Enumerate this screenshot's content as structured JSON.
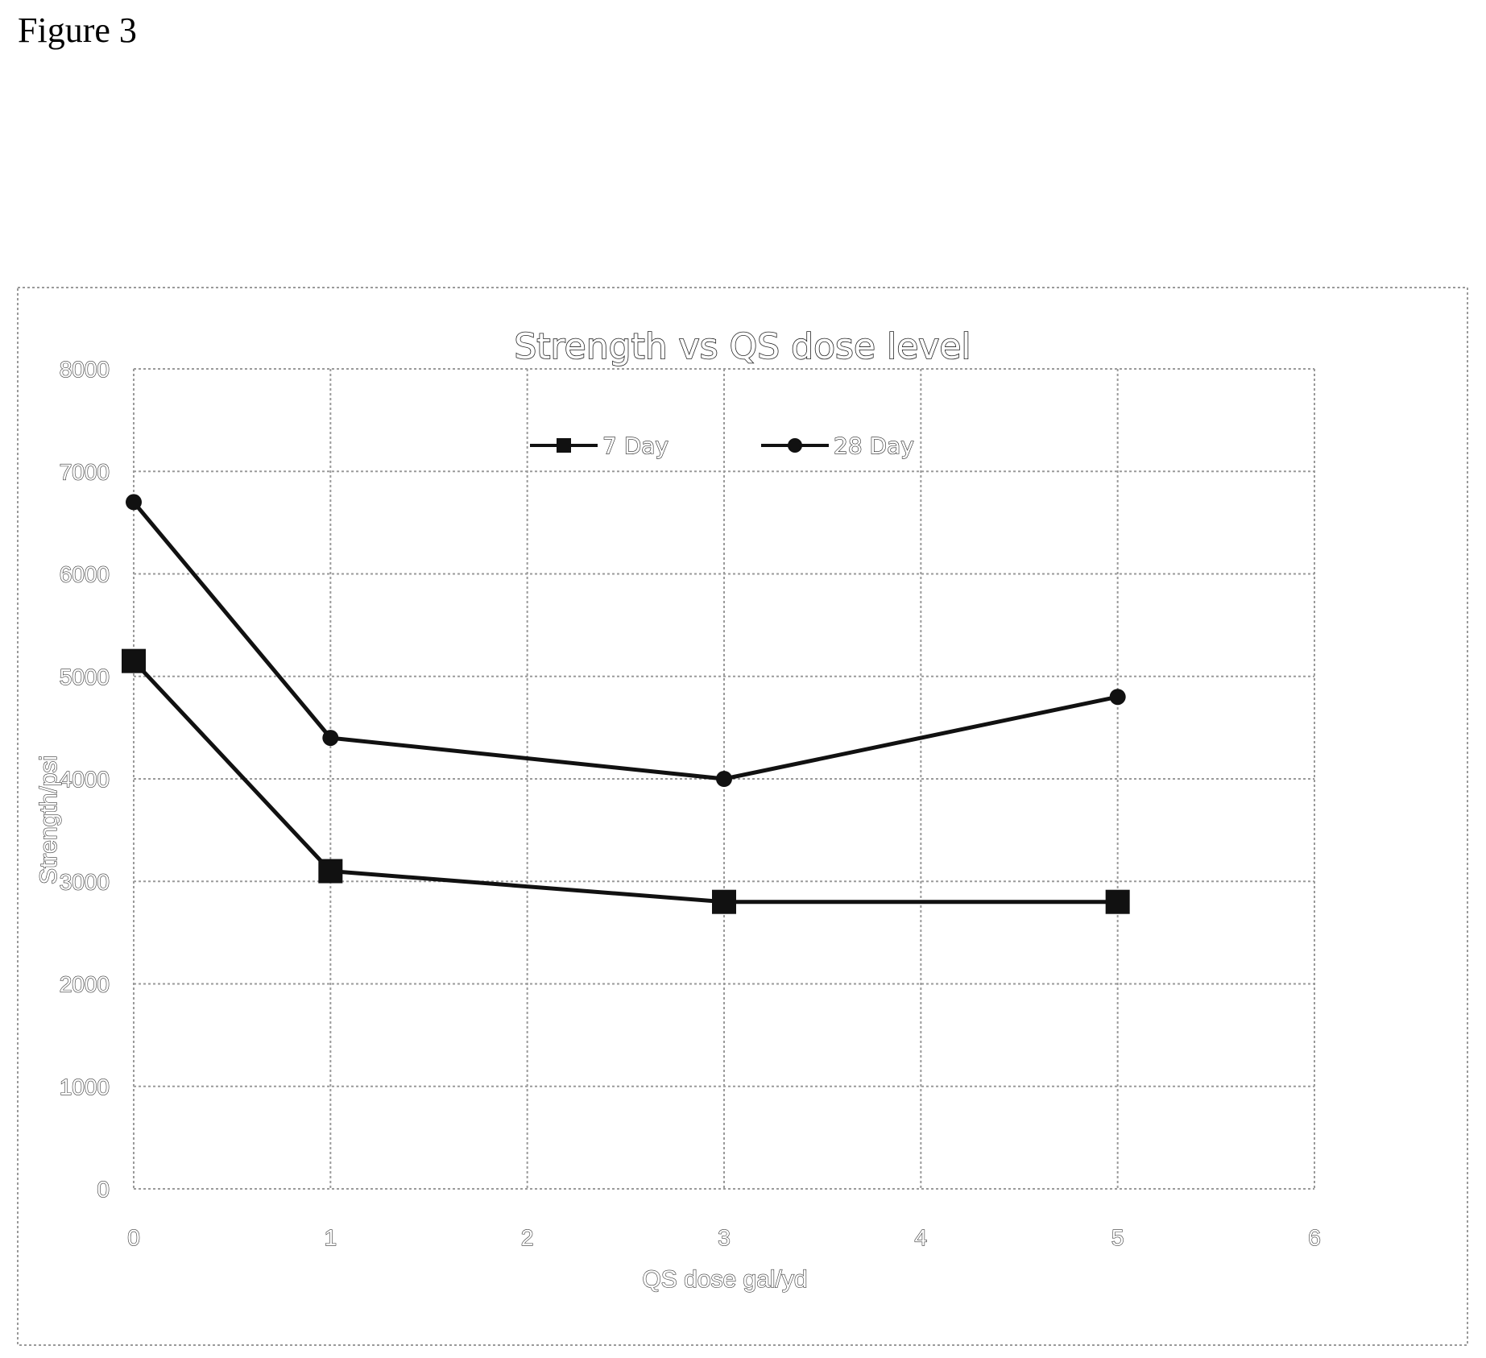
{
  "figure_label": "Figure 3",
  "colors": {
    "series": "#111111",
    "grid": "#9a9a9a",
    "frame": "#9a9a9a"
  },
  "chart_data": {
    "type": "line",
    "title": "Strength vs QS dose level",
    "xlabel": "QS dose gal/yd",
    "ylabel": "Strength/psi",
    "xlim": [
      0,
      6
    ],
    "ylim": [
      0,
      8000
    ],
    "x_ticks": [
      0,
      1,
      2,
      3,
      4,
      5,
      6
    ],
    "y_ticks": [
      0,
      1000,
      2000,
      3000,
      4000,
      5000,
      6000,
      7000,
      8000
    ],
    "grid": true,
    "legend_position": "top-center",
    "series": [
      {
        "name": "7 Day",
        "marker": "square",
        "x": [
          0,
          1,
          3,
          5
        ],
        "y": [
          5150,
          3100,
          2800,
          2800
        ]
      },
      {
        "name": "28 Day",
        "marker": "circle",
        "x": [
          0,
          1,
          3,
          5
        ],
        "y": [
          6700,
          4400,
          4000,
          4800
        ]
      }
    ]
  }
}
